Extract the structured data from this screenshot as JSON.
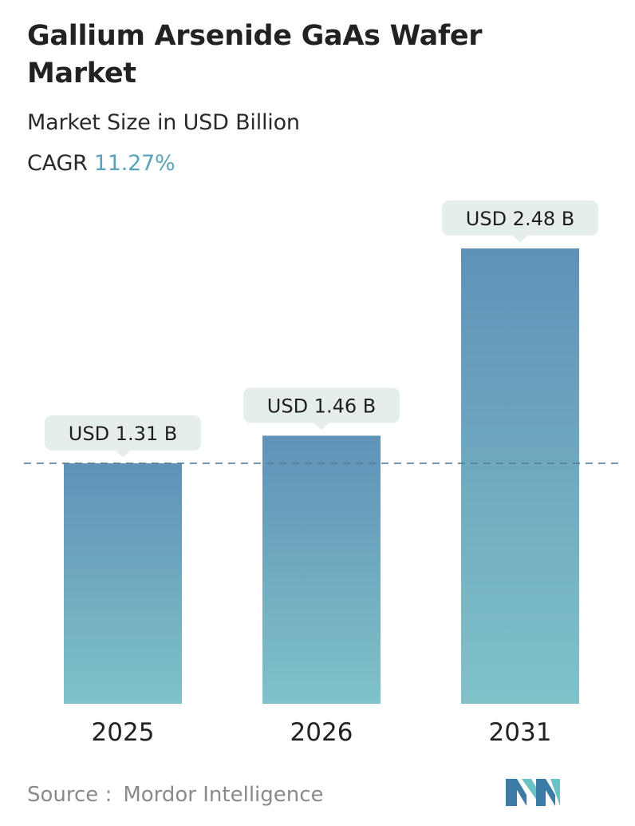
{
  "header": {
    "title": "Gallium Arsenide GaAs Wafer Market",
    "subtitle": "Market Size in USD Billion",
    "cagr_label": "CAGR",
    "cagr_value": "11.27%"
  },
  "footer": {
    "source_label": "Source :",
    "source_name": "Mordor Intelligence"
  },
  "colors": {
    "bar_top": "#5f92b8",
    "bar_bottom": "#80c2c8",
    "label_bg": "#e5eded",
    "dashed_line": "#5a7f98",
    "cagr_accent": "#5aa3b8"
  },
  "chart_data": {
    "type": "bar",
    "categories": [
      "2025",
      "2026",
      "2031"
    ],
    "values": [
      1.31,
      1.46,
      2.48
    ],
    "value_labels": [
      "USD 1.31 B",
      "USD 1.46 B",
      "USD 2.48 B"
    ],
    "title": "Gallium Arsenide GaAs Wafer Market",
    "subtitle": "Market Size in USD Billion",
    "ylim": [
      0,
      2.48
    ],
    "reference_line_value": 1.31,
    "grid": false,
    "legend": "none"
  }
}
